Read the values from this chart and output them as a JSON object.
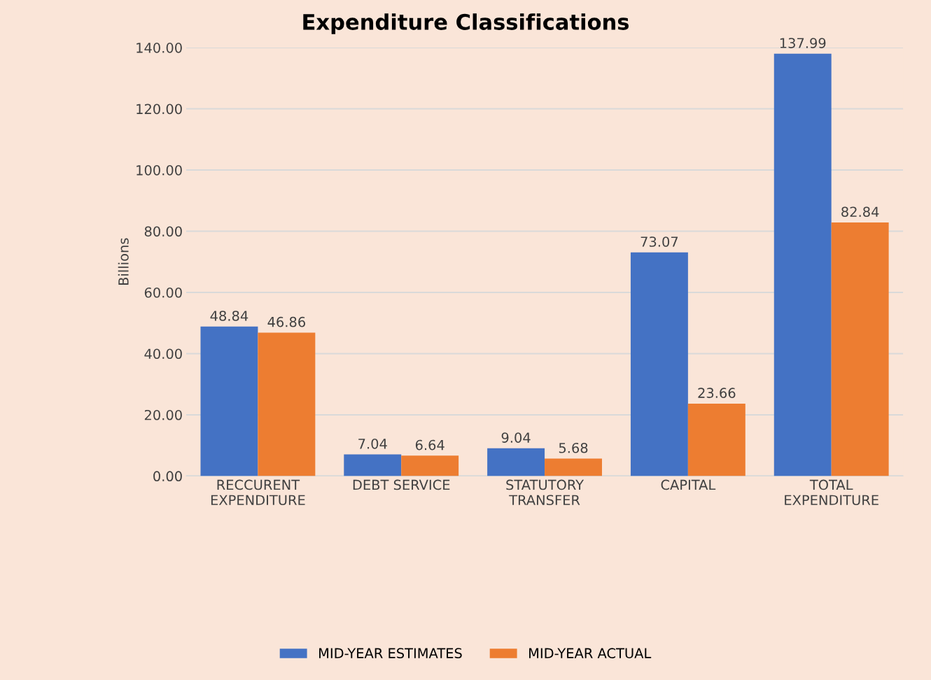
{
  "chart_data": {
    "type": "bar",
    "title": "Expenditure Classifications",
    "ylabel": "Billions",
    "categories": [
      "RECCURENT\nEXPENDITURE",
      "DEBT SERVICE",
      "STATUTORY\nTRANSFER",
      "CAPITAL",
      "TOTAL\nEXPENDITURE"
    ],
    "series": [
      {
        "name": "MID-YEAR ESTIMATES",
        "color": "#4472c4",
        "values": [
          48.84,
          7.04,
          9.04,
          73.07,
          137.99
        ]
      },
      {
        "name": "MID-YEAR ACTUAL",
        "color": "#ed7d31",
        "values": [
          46.86,
          6.64,
          5.68,
          23.66,
          82.84
        ]
      }
    ],
    "ylim": [
      0,
      140
    ],
    "yticks": [
      {
        "value": 0,
        "label": "0.00"
      },
      {
        "value": 20,
        "label": "20.00"
      },
      {
        "value": 40,
        "label": "40.00"
      },
      {
        "value": 60,
        "label": "60.00"
      },
      {
        "value": 80,
        "label": "80.00"
      },
      {
        "value": 100,
        "label": "100.00"
      },
      {
        "value": 120,
        "label": "120.00"
      },
      {
        "value": 140,
        "label": "140.00"
      }
    ],
    "grid": "y",
    "legend": "bottom",
    "data_labels": true
  }
}
